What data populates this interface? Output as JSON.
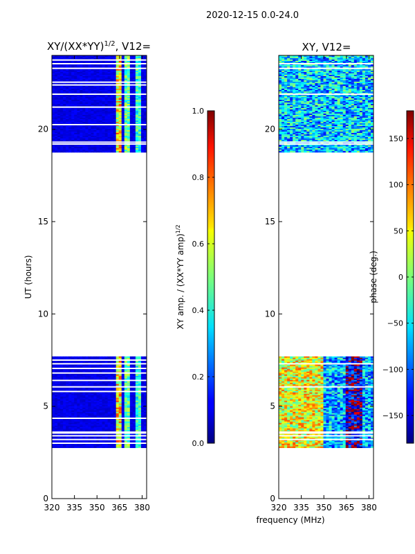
{
  "figure": {
    "suptitle": "2020-12-15 0.0-24.0",
    "shared_xlabel": "frequency (MHz)"
  },
  "chart_data": [
    {
      "type": "heatmap",
      "title_main": "XY/(XX*YY)",
      "title_sup": "1/2",
      "title_tail": ", V12=",
      "ylabel": "UT (hours)",
      "xlim": [
        320,
        383
      ],
      "ylim": [
        0,
        24
      ],
      "xticks": [
        320,
        335,
        350,
        365,
        380
      ],
      "yticks": [
        0,
        5,
        10,
        15,
        20
      ],
      "colormap": "jet",
      "colorbar": {
        "label_main": "XY amp. / (XX*YY amp)",
        "label_sup": "1/2",
        "range": [
          0.0,
          1.0
        ],
        "ticks": [
          "0.0",
          "0.2",
          "0.4",
          "0.6",
          "0.8",
          "1.0"
        ],
        "tick_values": [
          0.0,
          0.2,
          0.4,
          0.6,
          0.8,
          1.0
        ]
      },
      "data_blocks_ut": [
        [
          2.8,
          7.7
        ],
        [
          18.8,
          24.0
        ]
      ],
      "gap_lines_ut": [
        3.0,
        3.2,
        3.4,
        3.55,
        3.6,
        4.35,
        5.8,
        6.05,
        6.4,
        6.8,
        7.05,
        7.3,
        7.5,
        19.2,
        19.3,
        20.25,
        21.2,
        21.9,
        22.4,
        22.55,
        23.3,
        23.55,
        23.75
      ],
      "features": [
        {
          "freq_range": [
            362,
            366
          ],
          "value": 0.75
        },
        {
          "freq_range": [
            368,
            372
          ],
          "value": 0.55
        },
        {
          "freq_range": [
            376,
            380
          ],
          "value": 0.5
        }
      ],
      "background_value": 0.1
    },
    {
      "type": "heatmap",
      "title_main": "XY, V12=",
      "xlim": [
        320,
        383
      ],
      "ylim": [
        0,
        24
      ],
      "xticks": [
        320,
        335,
        350,
        365,
        380
      ],
      "yticks": [
        0,
        5,
        10,
        15,
        20
      ],
      "colormap": "jet",
      "colorbar": {
        "label": "phase (deg.)",
        "range": [
          -180,
          180
        ],
        "ticks": [
          "150",
          "100",
          "50",
          "0",
          "−50",
          "−100",
          "−150"
        ],
        "tick_values": [
          150,
          100,
          50,
          0,
          -50,
          -100,
          -150
        ]
      },
      "data_blocks_ut": [
        [
          2.8,
          7.7
        ],
        [
          18.8,
          24.0
        ]
      ],
      "gap_lines_ut": [
        3.2,
        3.4,
        3.55,
        3.6,
        6.05,
        7.3,
        19.2,
        19.3,
        21.9,
        23.3,
        23.55
      ],
      "typical_phase_low_block": 40,
      "typical_phase_high_block": -60
    }
  ]
}
